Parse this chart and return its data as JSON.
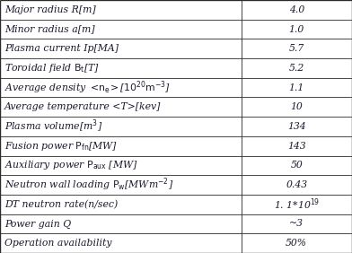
{
  "rows": [
    [
      "Major radius R[m]",
      "4.0",
      false,
      false
    ],
    [
      "Minor radius a[m]",
      "1.0",
      false,
      false
    ],
    [
      "Plasma current Ip[MA]",
      "5.7",
      false,
      false
    ],
    [
      "Toroidal field $\\mathrm{B_t}$[T]",
      "5.2",
      true,
      false
    ],
    [
      "Average density $<\\mathrm{n_e}>$[$10^{20}\\mathrm{m^{-3}}$]",
      "1.1",
      true,
      false
    ],
    [
      "Average temperature <T>[kev]",
      "10",
      false,
      false
    ],
    [
      "Plasma volume[$\\mathrm{m^3}$]",
      "134",
      true,
      false
    ],
    [
      "Fusion power $\\mathrm{P_{fn}}$[MW]",
      "143",
      true,
      false
    ],
    [
      "Auxiliary power $\\mathrm{P_{aux}}$ [MW]",
      "50",
      true,
      false
    ],
    [
      "Neutron wall loading $\\mathrm{P_w}$[$\\mathrm{MWm^{-2}}$]",
      "0.43",
      true,
      false
    ],
    [
      "DT neutron rate(n/sec)",
      "1. 1*10$^{19}$",
      false,
      true
    ],
    [
      "Power gain Q",
      "~3",
      false,
      false
    ],
    [
      "Operation availability",
      "50%",
      false,
      false
    ]
  ],
  "bg_color": "#ffffff",
  "border_color": "#2a2a2a",
  "text_color": "#1a1a2e",
  "font_size": 7.8,
  "math_font_size": 7.8,
  "col_split": 0.685,
  "figsize": [
    3.92,
    2.82
  ],
  "dpi": 100
}
